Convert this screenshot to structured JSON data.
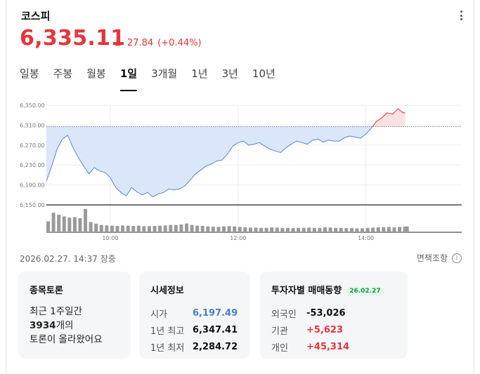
{
  "header": {
    "title": "코스피",
    "menu_icon": "more-vertical-icon"
  },
  "quote": {
    "price": "6,335.11",
    "change": "27.84",
    "change_pct": "(+0.44%)",
    "direction": "up"
  },
  "tabs": [
    {
      "label": "일봉",
      "active": false
    },
    {
      "label": "주봉",
      "active": false
    },
    {
      "label": "월봉",
      "active": false
    },
    {
      "label": "1일",
      "active": true
    },
    {
      "label": "3개월",
      "active": false
    },
    {
      "label": "1년",
      "active": false
    },
    {
      "label": "3년",
      "active": false
    },
    {
      "label": "10년",
      "active": false
    }
  ],
  "chart_data": {
    "type": "area",
    "y_ticks": [
      "6,350.00",
      "6,310.00",
      "6,270.00",
      "6,230.00",
      "6,190.00",
      "6,150.00"
    ],
    "x_ticks": [
      "10:00",
      "12:00",
      "14:00"
    ],
    "ylim": [
      6150,
      6350
    ],
    "baseline": 6307.27,
    "x_range": [
      "09:00",
      "15:30"
    ],
    "series": [
      {
        "times": [
          "09:00",
          "09:05",
          "09:10",
          "09:15",
          "09:20",
          "09:25",
          "09:30",
          "09:35",
          "09:40",
          "09:45",
          "09:50",
          "09:55",
          "10:00",
          "10:05",
          "10:10",
          "10:15",
          "10:20",
          "10:25",
          "10:30",
          "10:35",
          "10:40",
          "10:45",
          "10:50",
          "10:55",
          "11:00",
          "11:05",
          "11:10",
          "11:15",
          "11:20",
          "11:25",
          "11:30",
          "11:35",
          "11:40",
          "11:45",
          "11:50",
          "11:55",
          "12:00",
          "12:05",
          "12:10",
          "12:15",
          "12:20",
          "12:25",
          "12:30",
          "12:35",
          "12:40",
          "12:45",
          "12:50",
          "12:55",
          "13:00",
          "13:05",
          "13:10",
          "13:15",
          "13:20",
          "13:25",
          "13:30",
          "13:35",
          "13:40",
          "13:45",
          "13:50",
          "13:55",
          "14:00",
          "14:05",
          "14:10",
          "14:15",
          "14:20",
          "14:25",
          "14:30",
          "14:35",
          "14:37"
        ],
        "values": [
          6197.49,
          6228,
          6262,
          6282,
          6290,
          6265,
          6245,
          6228,
          6212,
          6225,
          6218,
          6215,
          6205,
          6185,
          6175,
          6168,
          6185,
          6176,
          6170,
          6175,
          6166,
          6172,
          6175,
          6182,
          6180,
          6182,
          6188,
          6200,
          6212,
          6220,
          6228,
          6232,
          6238,
          6240,
          6252,
          6268,
          6275,
          6278,
          6270,
          6272,
          6275,
          6268,
          6262,
          6258,
          6255,
          6265,
          6272,
          6278,
          6275,
          6272,
          6280,
          6282,
          6276,
          6280,
          6278,
          6278,
          6285,
          6288,
          6286,
          6284,
          6292,
          6304,
          6318,
          6325,
          6335,
          6332,
          6343,
          6335,
          6335.11
        ]
      }
    ],
    "volumes": [
      0.45,
      0.8,
      0.72,
      0.65,
      0.6,
      0.62,
      0.58,
      0.95,
      0.42,
      0.35,
      0.3,
      0.28,
      0.27,
      0.26,
      0.28,
      0.27,
      0.26,
      0.27,
      0.25,
      0.25,
      0.26,
      0.27,
      0.28,
      0.3,
      0.3,
      0.32,
      0.36,
      0.3,
      0.27,
      0.26,
      0.24,
      0.23,
      0.22,
      0.24,
      0.25,
      0.24,
      0.22,
      0.2,
      0.19,
      0.19,
      0.18,
      0.18,
      0.2,
      0.19,
      0.18,
      0.18,
      0.17,
      0.18,
      0.18,
      0.19,
      0.18,
      0.18,
      0.2,
      0.19,
      0.18,
      0.18,
      0.17,
      0.17,
      0.16,
      0.16,
      0.18,
      0.19,
      0.2,
      0.21,
      0.22,
      0.2,
      0.22,
      0.23,
      0.24
    ]
  },
  "status": {
    "timestamp": "2026.02.27. 14:37 장중",
    "notice": "면책조항"
  },
  "discussion": {
    "title": "종목토론",
    "line1": "최근 1주일간",
    "count": "3934",
    "count_suffix": "개의",
    "line3": "토론이 올라왔어요"
  },
  "market_info": {
    "title": "시세정보",
    "rows": [
      {
        "label": "시가",
        "value": "6,197.49",
        "color": "#4a7fd0"
      },
      {
        "label": "1년 최고",
        "value": "6,347.41",
        "color": "#111111"
      },
      {
        "label": "1년 최저",
        "value": "2,284.72",
        "color": "#111111"
      }
    ]
  },
  "investors": {
    "title": "투자자별 매매동향",
    "date": "26.02.27",
    "rows": [
      {
        "label": "외국인",
        "value": "-53,026",
        "color": "#111111"
      },
      {
        "label": "기관",
        "value": "+5,623",
        "color": "#e5353b"
      },
      {
        "label": "개인",
        "value": "+45,314",
        "color": "#e5353b"
      }
    ]
  }
}
